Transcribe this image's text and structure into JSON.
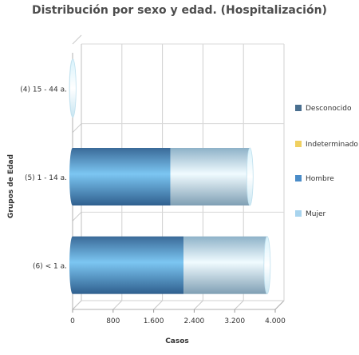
{
  "chart_data": {
    "type": "bar",
    "orientation": "horizontal",
    "stacked": true,
    "style": "3d-cylinder",
    "title": "Distribución por sexo y edad. (Hospitalización)",
    "xlabel": "Casos",
    "ylabel": "Grupos de Edad",
    "xlim": [
      0,
      4000
    ],
    "x_ticks": [
      "0",
      "800",
      "1.600",
      "2.400",
      "3.200",
      "4.000"
    ],
    "grid": true,
    "legend_position": "right",
    "categories": [
      "(4) 15 - 44 a.",
      "(5) 1 - 14 a.",
      "(6) < 1 a."
    ],
    "series": [
      {
        "name": "Desconocido",
        "color": "#4a6f8f",
        "values": [
          0,
          0,
          0
        ]
      },
      {
        "name": "Indeterminado",
        "color": "#f0d060",
        "values": [
          0,
          0,
          0
        ]
      },
      {
        "name": "Hombre",
        "color": "#4a8cc8",
        "values": [
          0,
          1930,
          2190
        ]
      },
      {
        "name": "Mujer",
        "color": "#a8d4ee",
        "values": [
          5,
          1570,
          1650
        ]
      }
    ]
  }
}
